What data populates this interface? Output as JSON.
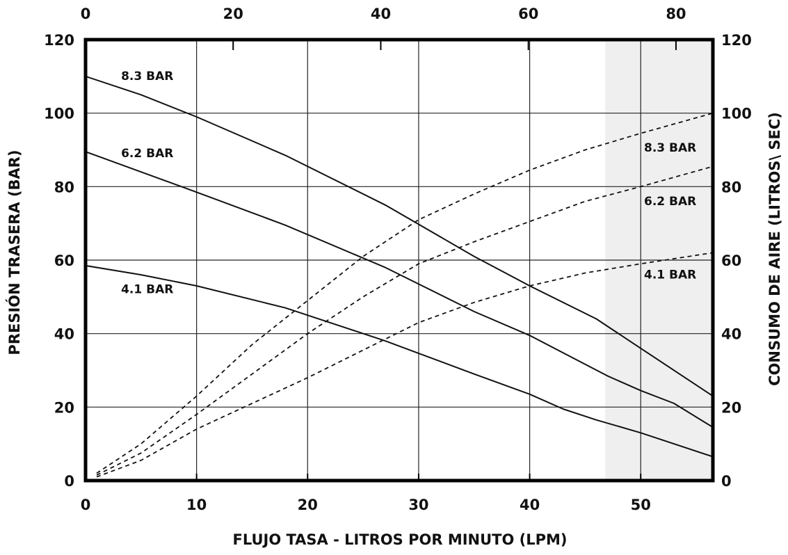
{
  "chart_data": {
    "type": "line",
    "xlabel": "FLUJO TASA -  LITROS POR MINUTO (LPM)",
    "ylabel_left": "PRESIÓN TRASERA  (BAR)",
    "ylabel_right": "CONSUMO DE AIRE (LITROS\\ SEC)",
    "xlim": [
      0,
      56.5
    ],
    "ylim": [
      0,
      120
    ],
    "x_ticks": [
      "0",
      "10",
      "20",
      "30",
      "40",
      "50"
    ],
    "x_tick_values": [
      0,
      10,
      20,
      30,
      40,
      50
    ],
    "top_ticks": [
      "0",
      "20",
      "40",
      "60",
      "80"
    ],
    "top_tick_values": [
      0,
      20,
      40,
      60,
      80
    ],
    "top_xlim": [
      0,
      85
    ],
    "y_ticks_left": [
      "0",
      "20",
      "40",
      "60",
      "80",
      "100",
      "120"
    ],
    "y_ticks_right": [
      "0",
      "20",
      "40",
      "60",
      "80",
      "100",
      "120"
    ],
    "y_tick_values": [
      0,
      20,
      40,
      60,
      80,
      100,
      120
    ],
    "grid": true,
    "shaded_region_x": [
      46.8,
      56.5
    ],
    "colors": {
      "line": "#111111",
      "shade": "#efefef",
      "frame": "#000000",
      "grid": "#222222"
    },
    "series": [
      {
        "name": "8.3 BAR",
        "style": "solid",
        "axis": "left",
        "x": [
          0,
          5,
          10,
          18,
          27,
          35,
          40,
          46,
          50,
          56.5
        ],
        "y": [
          110,
          105,
          99,
          88.5,
          75,
          61,
          53,
          44,
          36,
          23
        ]
      },
      {
        "name": "6.2 BAR",
        "style": "solid",
        "axis": "left",
        "x": [
          0,
          5,
          10,
          18,
          27,
          35,
          40,
          47,
          50,
          53,
          56.5
        ],
        "y": [
          89.5,
          84,
          78.5,
          69.5,
          58,
          46,
          39.5,
          28.5,
          24.5,
          21,
          14.5
        ]
      },
      {
        "name": "4.1 BAR",
        "style": "solid",
        "axis": "left",
        "x": [
          0,
          5,
          10,
          18,
          27,
          35,
          40,
          43,
          46,
          50,
          56.5
        ],
        "y": [
          58.5,
          56,
          53,
          47,
          38,
          29,
          23.5,
          19.5,
          16.5,
          13,
          6.5
        ]
      },
      {
        "name": "8.3 BAR",
        "style": "dashed",
        "axis": "right",
        "x": [
          1,
          5,
          10,
          15,
          20,
          25,
          30,
          35,
          40,
          45,
          50,
          56.5
        ],
        "y": [
          2,
          10,
          23,
          37,
          49,
          61,
          71,
          78,
          84.5,
          90,
          94.5,
          100
        ]
      },
      {
        "name": "6.2 BAR",
        "style": "dashed",
        "axis": "right",
        "x": [
          1,
          5,
          10,
          15,
          20,
          25,
          30,
          35,
          40,
          45,
          50,
          56.5
        ],
        "y": [
          1.5,
          7.5,
          18,
          29,
          40,
          50,
          59,
          65,
          70.5,
          76,
          80,
          85.5
        ]
      },
      {
        "name": "4.1 BAR",
        "style": "dashed",
        "axis": "right",
        "x": [
          1,
          5,
          10,
          15,
          20,
          25,
          30,
          35,
          40,
          45,
          50,
          56.5
        ],
        "y": [
          1,
          5.5,
          14,
          21,
          28,
          35.5,
          43,
          48.5,
          53,
          56.5,
          59,
          62
        ]
      }
    ],
    "labels": [
      {
        "text": "8.3 BAR",
        "x": 3.2,
        "y": 109
      },
      {
        "text": "6.2 BAR",
        "x": 3.2,
        "y": 88
      },
      {
        "text": "4.1 BAR",
        "x": 3.2,
        "y": 51
      },
      {
        "text": "8.3 BAR",
        "x": 50.3,
        "y": 89.5
      },
      {
        "text": "6.2 BAR",
        "x": 50.3,
        "y": 75
      },
      {
        "text": "4.1 BAR",
        "x": 50.3,
        "y": 55
      }
    ]
  }
}
